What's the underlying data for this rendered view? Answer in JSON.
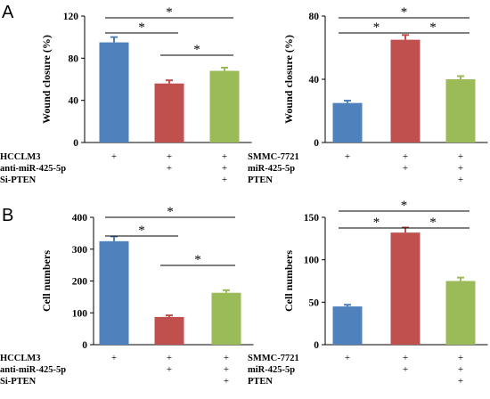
{
  "panels": [
    {
      "letter": "A"
    },
    {
      "letter": "B"
    }
  ],
  "chart_data": [
    {
      "type": "bar",
      "panel": "A",
      "ylabel": "Wound closure (%)",
      "ylim": [
        0,
        120
      ],
      "yticks": [
        0,
        40,
        80,
        120
      ],
      "series": [
        {
          "values": [
            95,
            56,
            68
          ],
          "errors": [
            5,
            3,
            3
          ],
          "colors": [
            "#4F81BD",
            "#C0504D",
            "#9BBB59"
          ]
        }
      ],
      "conditions": [
        {
          "label": "HCCLM3",
          "marks": [
            "+",
            "+",
            "+"
          ]
        },
        {
          "label": "anti-miR-425-5p",
          "marks": [
            "",
            "+",
            "+"
          ]
        },
        {
          "label": "Si-PTEN",
          "marks": [
            "",
            "",
            "+"
          ]
        }
      ],
      "significance": [
        {
          "from": 0,
          "to": 2,
          "label": "*"
        },
        {
          "from": 0,
          "to": 1,
          "label": "*"
        },
        {
          "from": 1,
          "to": 2,
          "label": "*"
        }
      ]
    },
    {
      "type": "bar",
      "panel": "A",
      "ylabel": "Wound closure (%)",
      "ylim": [
        0,
        80
      ],
      "yticks": [
        0,
        40,
        80
      ],
      "series": [
        {
          "values": [
            25,
            65,
            40
          ],
          "errors": [
            1.5,
            3,
            2
          ],
          "colors": [
            "#4F81BD",
            "#C0504D",
            "#9BBB59"
          ]
        }
      ],
      "conditions": [
        {
          "label": "SMMC-7721",
          "marks": [
            "+",
            "+",
            "+"
          ]
        },
        {
          "label": "miR-425-5p",
          "marks": [
            "",
            "+",
            "+"
          ]
        },
        {
          "label": "PTEN",
          "marks": [
            "",
            "",
            "+"
          ]
        }
      ],
      "significance": [
        {
          "from": 0,
          "to": 2,
          "label": "*"
        },
        {
          "from": 0,
          "to": 1,
          "label": "*"
        },
        {
          "from": 1,
          "to": 2,
          "label": "*"
        }
      ]
    },
    {
      "type": "bar",
      "panel": "B",
      "ylabel": "Cell numbers",
      "ylim": [
        0,
        400
      ],
      "yticks": [
        0,
        100,
        200,
        300,
        400
      ],
      "series": [
        {
          "values": [
            325,
            87,
            163
          ],
          "errors": [
            15,
            5,
            8
          ],
          "colors": [
            "#4F81BD",
            "#C0504D",
            "#9BBB59"
          ]
        }
      ],
      "conditions": [
        {
          "label": "HCCLM3",
          "marks": [
            "+",
            "+",
            "+"
          ]
        },
        {
          "label": "anti-miR-425-5p",
          "marks": [
            "",
            "+",
            "+"
          ]
        },
        {
          "label": "Si-PTEN",
          "marks": [
            "",
            "",
            "+"
          ]
        }
      ],
      "significance": [
        {
          "from": 0,
          "to": 2,
          "label": "*"
        },
        {
          "from": 0,
          "to": 1,
          "label": "*"
        },
        {
          "from": 1,
          "to": 2,
          "label": "*"
        }
      ]
    },
    {
      "type": "bar",
      "panel": "B",
      "ylabel": "Cell numbers",
      "ylim": [
        0,
        150
      ],
      "yticks": [
        0,
        50,
        100,
        150
      ],
      "series": [
        {
          "values": [
            45,
            132,
            75
          ],
          "errors": [
            2,
            6,
            4
          ],
          "colors": [
            "#4F81BD",
            "#C0504D",
            "#9BBB59"
          ]
        }
      ],
      "conditions": [
        {
          "label": "SMMC-7721",
          "marks": [
            "+",
            "+",
            "+"
          ]
        },
        {
          "label": "miR-425-5p",
          "marks": [
            "",
            "+",
            "+"
          ]
        },
        {
          "label": "PTEN",
          "marks": [
            "",
            "",
            "+"
          ]
        }
      ],
      "significance": [
        {
          "from": 0,
          "to": 2,
          "label": "*"
        },
        {
          "from": 0,
          "to": 1,
          "label": "*"
        },
        {
          "from": 1,
          "to": 2,
          "label": "*"
        }
      ]
    }
  ]
}
